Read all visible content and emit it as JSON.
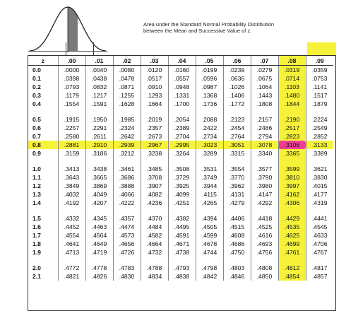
{
  "caption": {
    "line1": "Area under the Standard Normal Probability Distribution",
    "line2": "between the Mean and Successive Value of z."
  },
  "colors": {
    "highlight": "#f6f23a",
    "hit": "#ec3f95"
  },
  "table": {
    "headers": [
      "z",
      ".00",
      ".01",
      ".02",
      ".03",
      ".04",
      ".05",
      ".06",
      ".07",
      ".08",
      ".09"
    ],
    "rows": [
      [
        "0.0",
        ".0000",
        ".0040",
        ".0080",
        ".0120",
        ".0160",
        ".0199",
        ".0239",
        ".0279",
        ".0319",
        ".0359"
      ],
      [
        "0.1",
        ".0398",
        ".0438",
        ".0478",
        ".0517",
        ".0557",
        ".0596",
        ".0636",
        ".0675",
        ".0714",
        ".0753"
      ],
      [
        "0.2",
        ".0793",
        ".0832",
        ".0871",
        ".0910",
        ".0948",
        ".0987",
        ".1026",
        ".1064",
        ".1103",
        ".1141"
      ],
      [
        "0.3",
        ".1179",
        ".1217",
        ".1255",
        ".1293",
        ".1331",
        ".1368",
        ".1406",
        ".1443",
        ".1480",
        ".1517"
      ],
      [
        "0.4",
        ".1554",
        ".1591",
        ".1628",
        ".1664",
        ".1700",
        ".1736",
        ".1772",
        ".1808",
        ".1844",
        ".1879"
      ],
      null,
      [
        "0.5",
        ".1915",
        ".1950",
        ".1985",
        ".2019",
        ".2054",
        ".2088",
        ".2123",
        ".2157",
        ".2190",
        ".2224"
      ],
      [
        "0.6",
        ".2257",
        ".2291",
        ".2324",
        ".2357",
        ".2389",
        ".2422",
        ".2454",
        ".2486",
        ".2517",
        ".2549"
      ],
      [
        "0.7",
        ".2580",
        ".2611",
        ".2642",
        ".2673",
        ".2704",
        ".2734",
        ".2764",
        ".2794",
        ".2823",
        ".2852"
      ],
      [
        "0.8",
        ".2881",
        ".2910",
        ".2939",
        ".2967",
        ".2995",
        ".3023",
        ".3051",
        ".3078",
        ".3106",
        ".3133"
      ],
      [
        "0.9",
        ".3159",
        ".3186",
        ".3212",
        ".3238",
        ".3264",
        ".3289",
        ".3315",
        ".3340",
        ".3365",
        ".3389"
      ],
      null,
      [
        "1.0",
        ".3413",
        ".3438",
        ".3461",
        ".3485",
        ".3508",
        ".3531",
        ".3554",
        ".3577",
        ".3599",
        ".3621"
      ],
      [
        "1.1",
        ".3643",
        ".3665",
        ".3686",
        ".3708",
        ".3729",
        ".3749",
        ".3770",
        ".3790",
        ".3810",
        ".3830"
      ],
      [
        "1.2",
        ".3849",
        ".3869",
        ".3888",
        ".3907",
        ".3925",
        ".3944",
        ".3962",
        ".3980",
        ".3997",
        ".4015"
      ],
      [
        "1.3",
        ".4032",
        ".4049",
        ".4066",
        ".4082",
        ".4099",
        ".4115",
        ".4131",
        ".4147",
        ".4162",
        ".4177"
      ],
      [
        "1.4",
        ".4192",
        ".4207",
        ".4222",
        ".4236",
        ".4251",
        ".4265",
        ".4279",
        ".4292",
        ".4306",
        ".4319"
      ],
      null,
      [
        "1.5",
        ".4332",
        ".4345",
        ".4357",
        ".4370",
        ".4382",
        ".4394",
        ".4406",
        ".4418",
        ".4429",
        ".4441"
      ],
      [
        "1.6",
        ".4452",
        ".4463",
        ".4474",
        ".4484",
        ".4495",
        ".4505",
        ".4515",
        ".4525",
        ".4535",
        ".4545"
      ],
      [
        "1.7",
        ".4554",
        ".4564",
        ".4573",
        ".4582",
        ".4591",
        ".4599",
        ".4608",
        ".4616",
        ".4625",
        ".4633"
      ],
      [
        "1.8",
        ".4641",
        ".4649",
        ".4656",
        ".4664",
        ".4671",
        ".4678",
        ".4686",
        ".4693",
        ".4699",
        ".4706"
      ],
      [
        "1.9",
        ".4713",
        ".4719",
        ".4726",
        ".4732",
        ".4738",
        ".4744",
        ".4750",
        ".4756",
        ".4761",
        ".4767"
      ],
      null,
      [
        "2.0",
        ".4772",
        ".4778",
        ".4783",
        ".4788",
        ".4793",
        ".4798",
        ".4803",
        ".4808",
        ".4812",
        ".4817"
      ],
      [
        "2.1",
        ".4821",
        ".4826",
        ".4830",
        ".4834",
        ".4838",
        ".4842",
        ".4846",
        ".4850",
        ".4854",
        ".4857"
      ]
    ],
    "highlight_row": "0.8",
    "highlight_col": ".08"
  }
}
